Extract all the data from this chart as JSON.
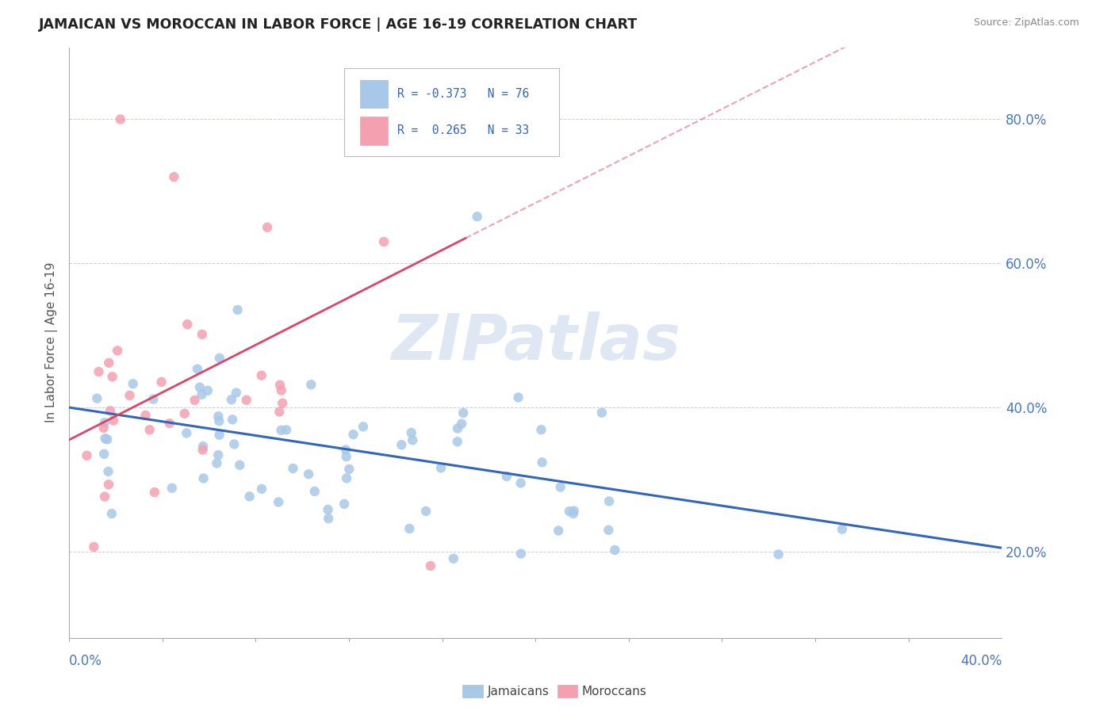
{
  "title": "JAMAICAN VS MOROCCAN IN LABOR FORCE | AGE 16-19 CORRELATION CHART",
  "source": "Source: ZipAtlas.com",
  "ylabel": "In Labor Force | Age 16-19",
  "xlim": [
    0.0,
    0.4
  ],
  "ylim": [
    0.08,
    0.9
  ],
  "yticks": [
    0.2,
    0.4,
    0.6,
    0.8
  ],
  "ytick_labels": [
    "20.0%",
    "40.0%",
    "60.0%",
    "80.0%"
  ],
  "blue_R": -0.373,
  "blue_N": 76,
  "pink_R": 0.265,
  "pink_N": 33,
  "blue_color": "#a8c8e8",
  "pink_color": "#f4a0b0",
  "blue_line_color": "#3366bb",
  "pink_line_color": "#dd4466",
  "legend_label_blue": "Jamaicans",
  "legend_label_pink": "Moroccans",
  "watermark": "ZIPatlas",
  "watermark_color": "#c8d8ea",
  "background_color": "#ffffff",
  "grid_color": "#ccccdd",
  "tick_color": "#4477cc"
}
